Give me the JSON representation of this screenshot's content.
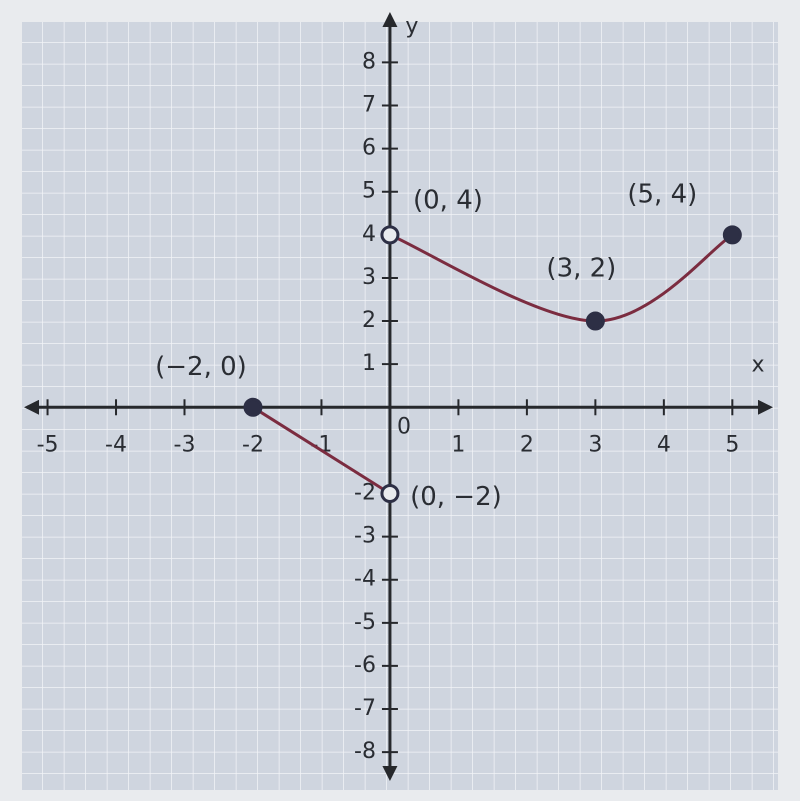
{
  "chart_data": {
    "type": "function-graph",
    "x_label": "x",
    "y_label": "y",
    "xlim": [
      -5.3,
      5.55
    ],
    "ylim": [
      -8.6,
      9.1
    ],
    "xticks": [
      -5,
      -4,
      -3,
      -2,
      -1,
      0,
      1,
      2,
      3,
      4,
      5
    ],
    "yticks": [
      -8,
      -7,
      -6,
      -5,
      -4,
      -3,
      -2,
      1,
      2,
      3,
      4,
      5,
      6,
      7,
      8
    ],
    "color": "#7b2c40",
    "grid": true,
    "series": [
      {
        "x": [
          -2,
          0
        ],
        "values": [
          0,
          -2
        ],
        "smooth": false,
        "point_filled": [
          true,
          false
        ],
        "point_labels": [
          "(−2, 0)",
          "(0, −2)"
        ]
      },
      {
        "x": [
          0,
          3,
          5
        ],
        "values": [
          4,
          2,
          4
        ],
        "smooth": true,
        "point_filled": [
          false,
          true,
          true
        ],
        "point_labels": [
          "(0, 4)",
          "(3, 2)",
          "(5, 4)"
        ]
      }
    ]
  }
}
